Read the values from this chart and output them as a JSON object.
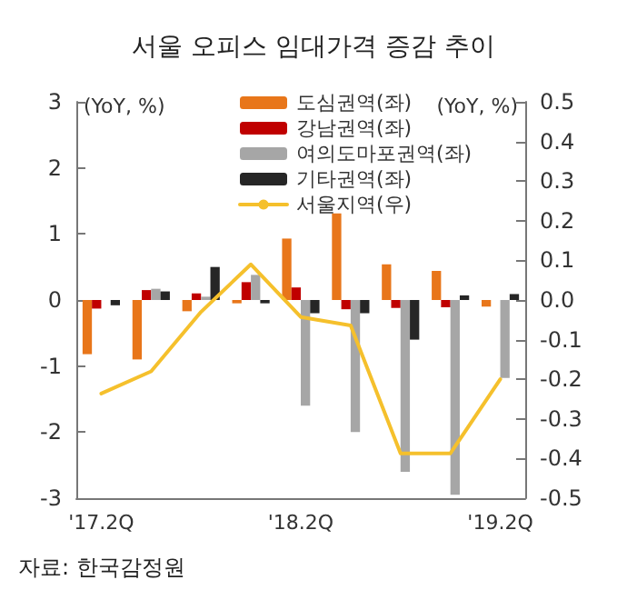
{
  "chart_data": {
    "type": "bar",
    "title": "서울 오피스 임대가격 증감 추이",
    "ylabel": "(YoY, %)",
    "y2label": "(YoY, %)",
    "categories": [
      "'17.2Q",
      null,
      null,
      null,
      "'18.2Q",
      null,
      null,
      null,
      "'19.2Q"
    ],
    "series": [
      {
        "name": "도심권역(좌)",
        "color": "#e8761a",
        "values": [
          -0.82,
          -0.9,
          -0.17,
          -0.05,
          0.93,
          1.31,
          0.54,
          0.44,
          -0.1
        ]
      },
      {
        "name": "강남권역(좌)",
        "color": "#c00000",
        "values": [
          -0.13,
          0.15,
          0.1,
          0.27,
          0.19,
          -0.14,
          -0.12,
          -0.11,
          0
        ]
      },
      {
        "name": "여의도마포권역(좌)",
        "color": "#a6a6a6",
        "values": [
          0,
          0.17,
          0.05,
          0.38,
          -1.6,
          -2.0,
          -2.6,
          -2.95,
          -1.18
        ]
      },
      {
        "name": "기타권역(좌)",
        "color": "#262626",
        "values": [
          -0.08,
          0.13,
          0.5,
          -0.05,
          -0.2,
          -0.2,
          -0.6,
          0.07,
          0.09
        ]
      },
      {
        "name": "서울지역(우)",
        "type": "line",
        "axis": "y2",
        "color": "#f5c02c",
        "values": [
          -0.236,
          -0.18,
          -0.03,
          0.09,
          -0.043,
          -0.064,
          -0.387,
          -0.387,
          -0.2
        ]
      }
    ],
    "ylim": [
      -3,
      3
    ],
    "yticks": [
      -3,
      -2,
      -1,
      0,
      1,
      2,
      3
    ],
    "y2lim": [
      -0.5,
      0.5
    ],
    "y2ticks": [
      {
        "value": -0.5,
        "label": "-0.5"
      },
      {
        "value": -0.4,
        "label": "-0.4"
      },
      {
        "value": -0.3,
        "label": "-0.3"
      },
      {
        "value": -0.2,
        "label": "-0.2"
      },
      {
        "value": -0.1,
        "label": "-0.1"
      },
      {
        "value": 0,
        "label": "0.0"
      },
      {
        "value": 0.1,
        "label": "0.1"
      },
      {
        "value": 0.2,
        "label": "0.2"
      },
      {
        "value": 0.3,
        "label": "0.3"
      },
      {
        "value": 0.4,
        "label": "0.4"
      },
      {
        "value": 0.5,
        "label": "0.5"
      }
    ],
    "grid": false,
    "legend": "top",
    "marker": "none",
    "annotations": [
      "자료: 한국감정원"
    ]
  }
}
